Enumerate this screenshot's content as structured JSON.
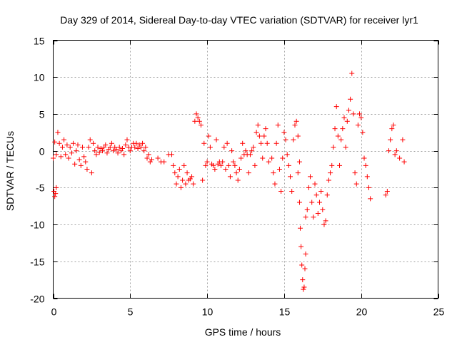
{
  "chart_data": {
    "type": "scatter",
    "title": "Day 329 of 2014, Sidereal Day-to-day VTEC variation (SDTVAR) for receiver lyr1",
    "xlabel": "GPS time / hours",
    "ylabel": "SDTVAR / TECUs",
    "xlim": [
      0,
      25
    ],
    "ylim": [
      -20,
      15
    ],
    "xticks": [
      0,
      5,
      10,
      15,
      20,
      25
    ],
    "yticks": [
      -20,
      -15,
      -10,
      -5,
      0,
      5,
      10,
      15
    ],
    "grid": true,
    "marker": "+",
    "color": "#ff0000",
    "segments": [
      {
        "x": [
          0.0,
          0.1,
          0.2,
          0.3,
          0.4,
          0.5,
          0.6,
          0.7,
          0.8,
          0.9,
          1.0,
          1.1,
          1.2,
          1.3,
          1.4,
          1.5,
          1.6,
          1.7,
          1.8,
          1.9,
          2.0,
          2.1,
          2.2,
          2.3,
          2.4,
          2.5,
          2.6,
          2.7,
          2.8,
          2.9,
          3.0,
          3.1,
          3.2,
          3.3,
          3.4,
          3.5,
          3.6,
          3.7,
          3.8,
          3.9,
          4.0,
          4.1,
          4.2,
          4.3,
          4.4,
          4.5,
          4.6,
          4.7,
          4.8,
          4.9,
          5.0,
          5.1,
          5.2,
          5.3,
          5.4,
          5.5,
          5.6,
          5.7,
          5.8,
          5.9,
          6.0,
          6.1,
          6.2,
          6.3,
          6.4
        ],
        "y": [
          -1.0,
          1.2,
          -0.5,
          2.5,
          1.0,
          -0.8,
          0.5,
          1.5,
          -0.5,
          0.8,
          -1.0,
          0.5,
          -0.3,
          1.0,
          -1.8,
          0.0,
          0.8,
          -1.2,
          -2.0,
          0.5,
          -0.8,
          -1.5,
          -2.5,
          0.5,
          1.5,
          -3.0,
          1.0,
          0.0,
          -0.5,
          0.5,
          -0.2,
          0.3,
          0.0,
          0.5,
          0.8,
          -0.3,
          0.2,
          0.5,
          1.0,
          0.0,
          0.5,
          0.2,
          -0.3,
          0.5,
          0.0,
          0.3,
          -0.5,
          0.8,
          1.5,
          0.5,
          0.0,
          0.5,
          1.0,
          0.5,
          1.0,
          0.3,
          0.8,
          0.5,
          1.0,
          0.0,
          0.5,
          -1.0,
          -0.5,
          -1.5,
          -1.2
        ]
      },
      {
        "x": [
          0.05,
          0.1,
          0.15,
          0.2
        ],
        "y": [
          -5.5,
          -6.2,
          -5.8,
          -5.0
        ]
      },
      {
        "x": [
          6.8,
          7.0,
          7.2,
          7.5,
          7.7,
          7.8,
          7.9,
          8.0,
          8.1,
          8.2,
          8.3,
          8.4,
          8.5,
          8.6,
          8.7,
          8.8,
          8.9,
          9.0,
          9.1,
          9.2,
          9.3,
          9.4,
          9.5,
          9.6,
          9.7,
          9.8,
          9.9,
          10.0,
          10.1,
          10.2,
          10.3,
          10.4,
          10.5,
          10.6,
          10.7,
          10.8,
          10.9,
          11.0,
          11.1,
          11.2,
          11.3,
          11.4,
          11.5,
          11.6,
          11.7,
          11.8,
          11.9,
          12.0,
          12.1,
          12.2,
          12.3,
          12.4,
          12.5,
          12.6,
          12.7,
          12.8,
          12.9,
          13.0,
          13.1,
          13.2,
          13.3,
          13.4,
          13.5,
          13.6,
          13.7,
          13.8,
          13.9,
          14.0
        ],
        "y": [
          -1.0,
          -1.5,
          -1.5,
          -0.5,
          -0.5,
          -2.0,
          -3.0,
          -4.5,
          -3.5,
          -2.5,
          -5.0,
          -4.0,
          -2.0,
          -4.5,
          -3.0,
          -4.0,
          -3.8,
          -3.5,
          -4.5,
          4.0,
          5.0,
          4.5,
          4.0,
          3.5,
          -4.0,
          1.0,
          -2.0,
          -1.5,
          2.0,
          0.5,
          -1.8,
          -2.0,
          -2.5,
          1.5,
          -1.8,
          -1.5,
          -2.0,
          -1.5,
          0.5,
          -2.5,
          1.0,
          -2.0,
          -3.5,
          0.0,
          -1.5,
          -2.0,
          -3.0,
          -4.0,
          -2.5,
          -1.0,
          1.0,
          -0.5,
          0.0,
          -0.5,
          -3.0,
          -0.5,
          0.0,
          0.5,
          -2.0,
          2.5,
          3.5,
          2.0,
          1.0,
          -1.0,
          2.0,
          3.0,
          1.0,
          -1.5
        ]
      },
      {
        "x": [
          14.2,
          14.3,
          14.4,
          14.5,
          14.6,
          14.7,
          14.8,
          14.9,
          15.0,
          15.1,
          15.2,
          15.3,
          15.4,
          15.5,
          15.6,
          15.7,
          15.8,
          15.9,
          16.0
        ],
        "y": [
          -1.0,
          -3.0,
          -4.5,
          1.0,
          3.5,
          -2.5,
          -5.5,
          -1.0,
          2.5,
          1.5,
          -0.5,
          -2.0,
          -3.5,
          -5.5,
          1.5,
          3.5,
          4.0,
          2.0,
          -1.5
        ]
      },
      {
        "x": [
          15.9,
          16.0,
          16.05,
          16.1,
          16.15,
          16.2,
          16.25,
          16.3,
          16.35,
          16.4
        ],
        "y": [
          -3.0,
          -7.0,
          -10.5,
          -13.0,
          -15.5,
          -17.5,
          -18.8,
          -18.5,
          -16.0,
          -14.0
        ]
      },
      {
        "x": [
          16.4,
          16.5,
          16.6,
          16.7,
          16.8,
          16.9,
          17.0,
          17.1,
          17.2,
          17.3,
          17.4,
          17.5,
          17.6,
          17.7,
          17.8,
          17.9,
          18.0,
          18.1,
          18.2,
          18.3,
          18.4,
          18.5,
          18.6,
          18.7,
          18.8,
          18.9,
          19.0,
          19.1,
          19.2,
          19.3,
          19.4,
          19.5,
          19.6,
          19.7,
          19.8,
          19.9,
          20.0,
          20.1,
          20.2,
          20.3,
          20.4,
          20.5,
          20.6
        ],
        "y": [
          -9.0,
          -8.0,
          -5.0,
          -3.5,
          -7.0,
          -9.0,
          -4.5,
          -6.0,
          -8.5,
          -7.0,
          -5.5,
          -8.0,
          -10.0,
          -9.5,
          -6.0,
          -4.0,
          -3.0,
          -2.0,
          0.5,
          3.0,
          6.0,
          2.0,
          -2.0,
          1.5,
          3.0,
          4.5,
          0.5,
          4.0,
          5.5,
          7.0,
          10.5,
          5.0,
          -3.0,
          -4.5,
          3.5,
          5.0,
          4.5,
          2.5,
          -1.0,
          -2.0,
          -3.5,
          -5.0,
          -6.5
        ]
      },
      {
        "x": [
          21.6,
          21.7,
          21.8,
          21.9,
          22.0,
          22.1,
          22.2,
          22.3,
          22.5,
          22.7,
          22.8
        ],
        "y": [
          -6.0,
          -5.5,
          0.0,
          1.5,
          3.0,
          3.5,
          -0.5,
          0.0,
          -1.0,
          1.5,
          -1.5
        ]
      }
    ]
  }
}
